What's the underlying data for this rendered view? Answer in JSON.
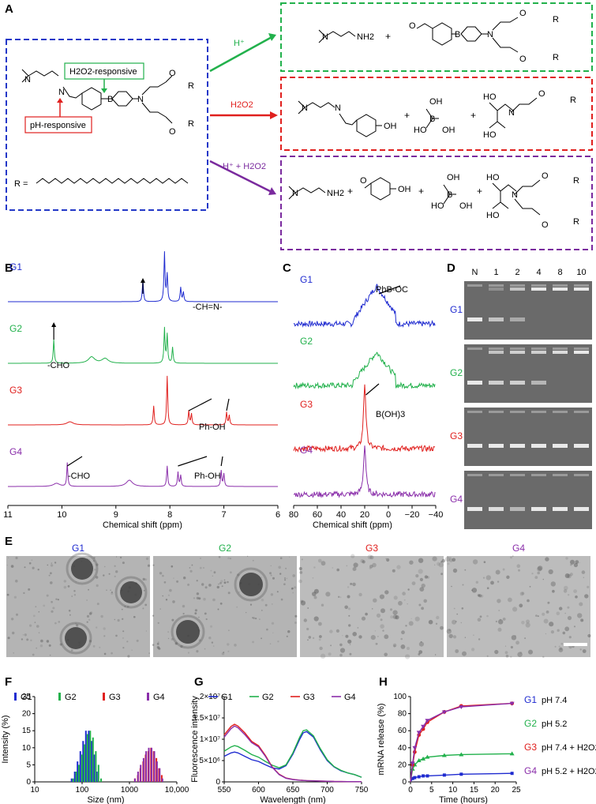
{
  "panel_labels": {
    "a": "A",
    "b": "B",
    "c": "C",
    "d": "D",
    "e": "E",
    "f": "F",
    "g": "G",
    "h": "H"
  },
  "colors": {
    "G1": "#1f2bd0",
    "G2": "#22b14c",
    "G3": "#e0201e",
    "G4": "#8a2eaa",
    "panelA_blue": "#2338c8",
    "panelA_green": "#22b14c",
    "panelA_red": "#e0201e",
    "panelA_purple": "#7a2a9e",
    "orange": "#d9772a"
  },
  "scheme": {
    "h2o2_responsive": "H2O2-responsive",
    "ph_responsive": "pH-responsive",
    "r_label": "R =",
    "arrow_h": "H⁺",
    "arrow_h2o2": "H2O2",
    "arrow_both": "H⁺ + H2O2",
    "plus": "+",
    "r": "R",
    "o": "O",
    "n": "N",
    "b": "B",
    "oh": "OH",
    "ho": "HO",
    "nh2": "NH2",
    "b_oh": "B",
    "b_oh_top": "OH"
  },
  "groups": [
    "G1",
    "G2",
    "G3",
    "G4"
  ],
  "nmr": {
    "annotations": {
      "g1": "-CH=N-",
      "g2": "-CHO",
      "g3": "Ph-OH",
      "g4_cho": "-CHO",
      "g4_phoh": "Ph-OH"
    },
    "xlabel": "Chemical shift (ppm)",
    "ticks": [
      "11",
      "10",
      "9",
      "8",
      "7",
      "6"
    ]
  },
  "b11": {
    "annotations": {
      "g1": "PhB-OC",
      "g3": "B(OH)3"
    },
    "xlabel": "Chemical shift (ppm)",
    "ticks": [
      "80",
      "60",
      "40",
      "20",
      "0",
      "−20",
      "−40"
    ]
  },
  "gel": {
    "lanes": [
      "N",
      "1",
      "2",
      "4",
      "8",
      "10"
    ]
  },
  "tem": {
    "labels": [
      "G1",
      "G2",
      "G3",
      "G4"
    ]
  },
  "chart_data": [
    {
      "type": "bar",
      "panel": "F",
      "xlabel": "Size (nm)",
      "ylabel": "Intensity (%)",
      "xscale": "log",
      "xlim": [
        10,
        10000
      ],
      "ylim": [
        0,
        25
      ],
      "xticks": [
        "10",
        "100",
        "1000",
        "10,000"
      ],
      "yticks": [
        "0",
        "5",
        "10",
        "15",
        "20",
        "25"
      ],
      "series": [
        {
          "name": "G1",
          "x": [
            60,
            70,
            80,
            92,
            105,
            120,
            138,
            158,
            180,
            205
          ],
          "values": [
            1,
            3,
            6,
            9,
            12,
            15,
            15,
            12,
            8,
            3
          ]
        },
        {
          "name": "G2",
          "x": [
            62,
            72,
            82,
            95,
            108,
            124,
            142,
            162,
            186,
            212,
            240
          ],
          "values": [
            1,
            3,
            5,
            8,
            11,
            14,
            15,
            13,
            9,
            5,
            1
          ]
        },
        {
          "name": "G3",
          "x": [
            1300,
            1500,
            1700,
            1950,
            2200,
            2500,
            2850,
            3250,
            3700,
            4200,
            4800
          ],
          "values": [
            1,
            2,
            4,
            6,
            8,
            9,
            10,
            9,
            7,
            4,
            2
          ]
        },
        {
          "name": "G4",
          "x": [
            1250,
            1450,
            1650,
            1900,
            2150,
            2450,
            2800,
            3200,
            3650,
            4150,
            4750
          ],
          "values": [
            1,
            3,
            5,
            7,
            9,
            10,
            10,
            9,
            6,
            4,
            1
          ]
        }
      ]
    },
    {
      "type": "line",
      "panel": "G",
      "xlabel": "Wavelength (nm)",
      "ylabel": "Fluorescence intensity",
      "xlim": [
        550,
        750
      ],
      "ylim": [
        0,
        20000000
      ],
      "xticks": [
        "550",
        "600",
        "650",
        "700",
        "750"
      ],
      "yticks": [
        "0",
        "5×10⁶",
        "1×10⁷",
        "1.5×10⁷",
        "2×10⁷"
      ],
      "x": [
        550,
        560,
        565,
        570,
        580,
        590,
        600,
        610,
        620,
        630,
        640,
        650,
        660,
        665,
        670,
        680,
        690,
        700,
        710,
        720,
        730,
        740,
        750
      ],
      "series": [
        {
          "name": "G1",
          "values": [
            6000000,
            6800000,
            7000000,
            6800000,
            6000000,
            5200000,
            4800000,
            4000000,
            3300000,
            3000000,
            3800000,
            6500000,
            10000000,
            11500000,
            11800000,
            10500000,
            7500000,
            5000000,
            3500000,
            2600000,
            2100000,
            1700000,
            1100000
          ]
        },
        {
          "name": "G2",
          "values": [
            7200000,
            8200000,
            8500000,
            8300000,
            7400000,
            6400000,
            5800000,
            4800000,
            3900000,
            3300000,
            4000000,
            6800000,
            10500000,
            12000000,
            12200000,
            10800000,
            7800000,
            5200000,
            3600000,
            2700000,
            2100000,
            1700000,
            1100000
          ]
        },
        {
          "name": "G3",
          "values": [
            11000000,
            13000000,
            13500000,
            13100000,
            11500000,
            9500000,
            8500000,
            6200000,
            3500000,
            1800000,
            900000,
            600000,
            400000,
            350000,
            300000,
            250000,
            200000,
            150000,
            100000,
            80000,
            60000,
            50000,
            40000
          ]
        },
        {
          "name": "G4",
          "values": [
            10500000,
            12500000,
            13100000,
            12700000,
            11100000,
            9200000,
            8200000,
            6000000,
            3400000,
            1700000,
            850000,
            550000,
            380000,
            330000,
            290000,
            240000,
            190000,
            140000,
            100000,
            80000,
            60000,
            50000,
            40000
          ]
        }
      ]
    },
    {
      "type": "line",
      "panel": "H",
      "xlabel": "Time (hours)",
      "ylabel": "mRNA release (%)",
      "xlim": [
        0,
        25
      ],
      "ylim": [
        0,
        100
      ],
      "xticks": [
        "0",
        "5",
        "10",
        "15",
        "20",
        "25"
      ],
      "yticks": [
        "0",
        "20",
        "40",
        "60",
        "80",
        "100"
      ],
      "x": [
        0.5,
        1,
        2,
        3,
        4,
        8,
        12,
        24
      ],
      "series": [
        {
          "name": "G1",
          "condition": "pH 7.4",
          "values": [
            4,
            5,
            6,
            7,
            7,
            8,
            9,
            10
          ]
        },
        {
          "name": "G2",
          "condition": "pH 5.2",
          "values": [
            15,
            20,
            25,
            27,
            29,
            31,
            32,
            33
          ]
        },
        {
          "name": "G3",
          "condition": "pH 7.4 + H2O2",
          "values": [
            20,
            35,
            55,
            62,
            70,
            82,
            89,
            92
          ]
        },
        {
          "name": "G4",
          "condition": "pH 5.2 + H2O2",
          "values": [
            22,
            40,
            58,
            65,
            72,
            82,
            88,
            92
          ]
        }
      ]
    }
  ]
}
